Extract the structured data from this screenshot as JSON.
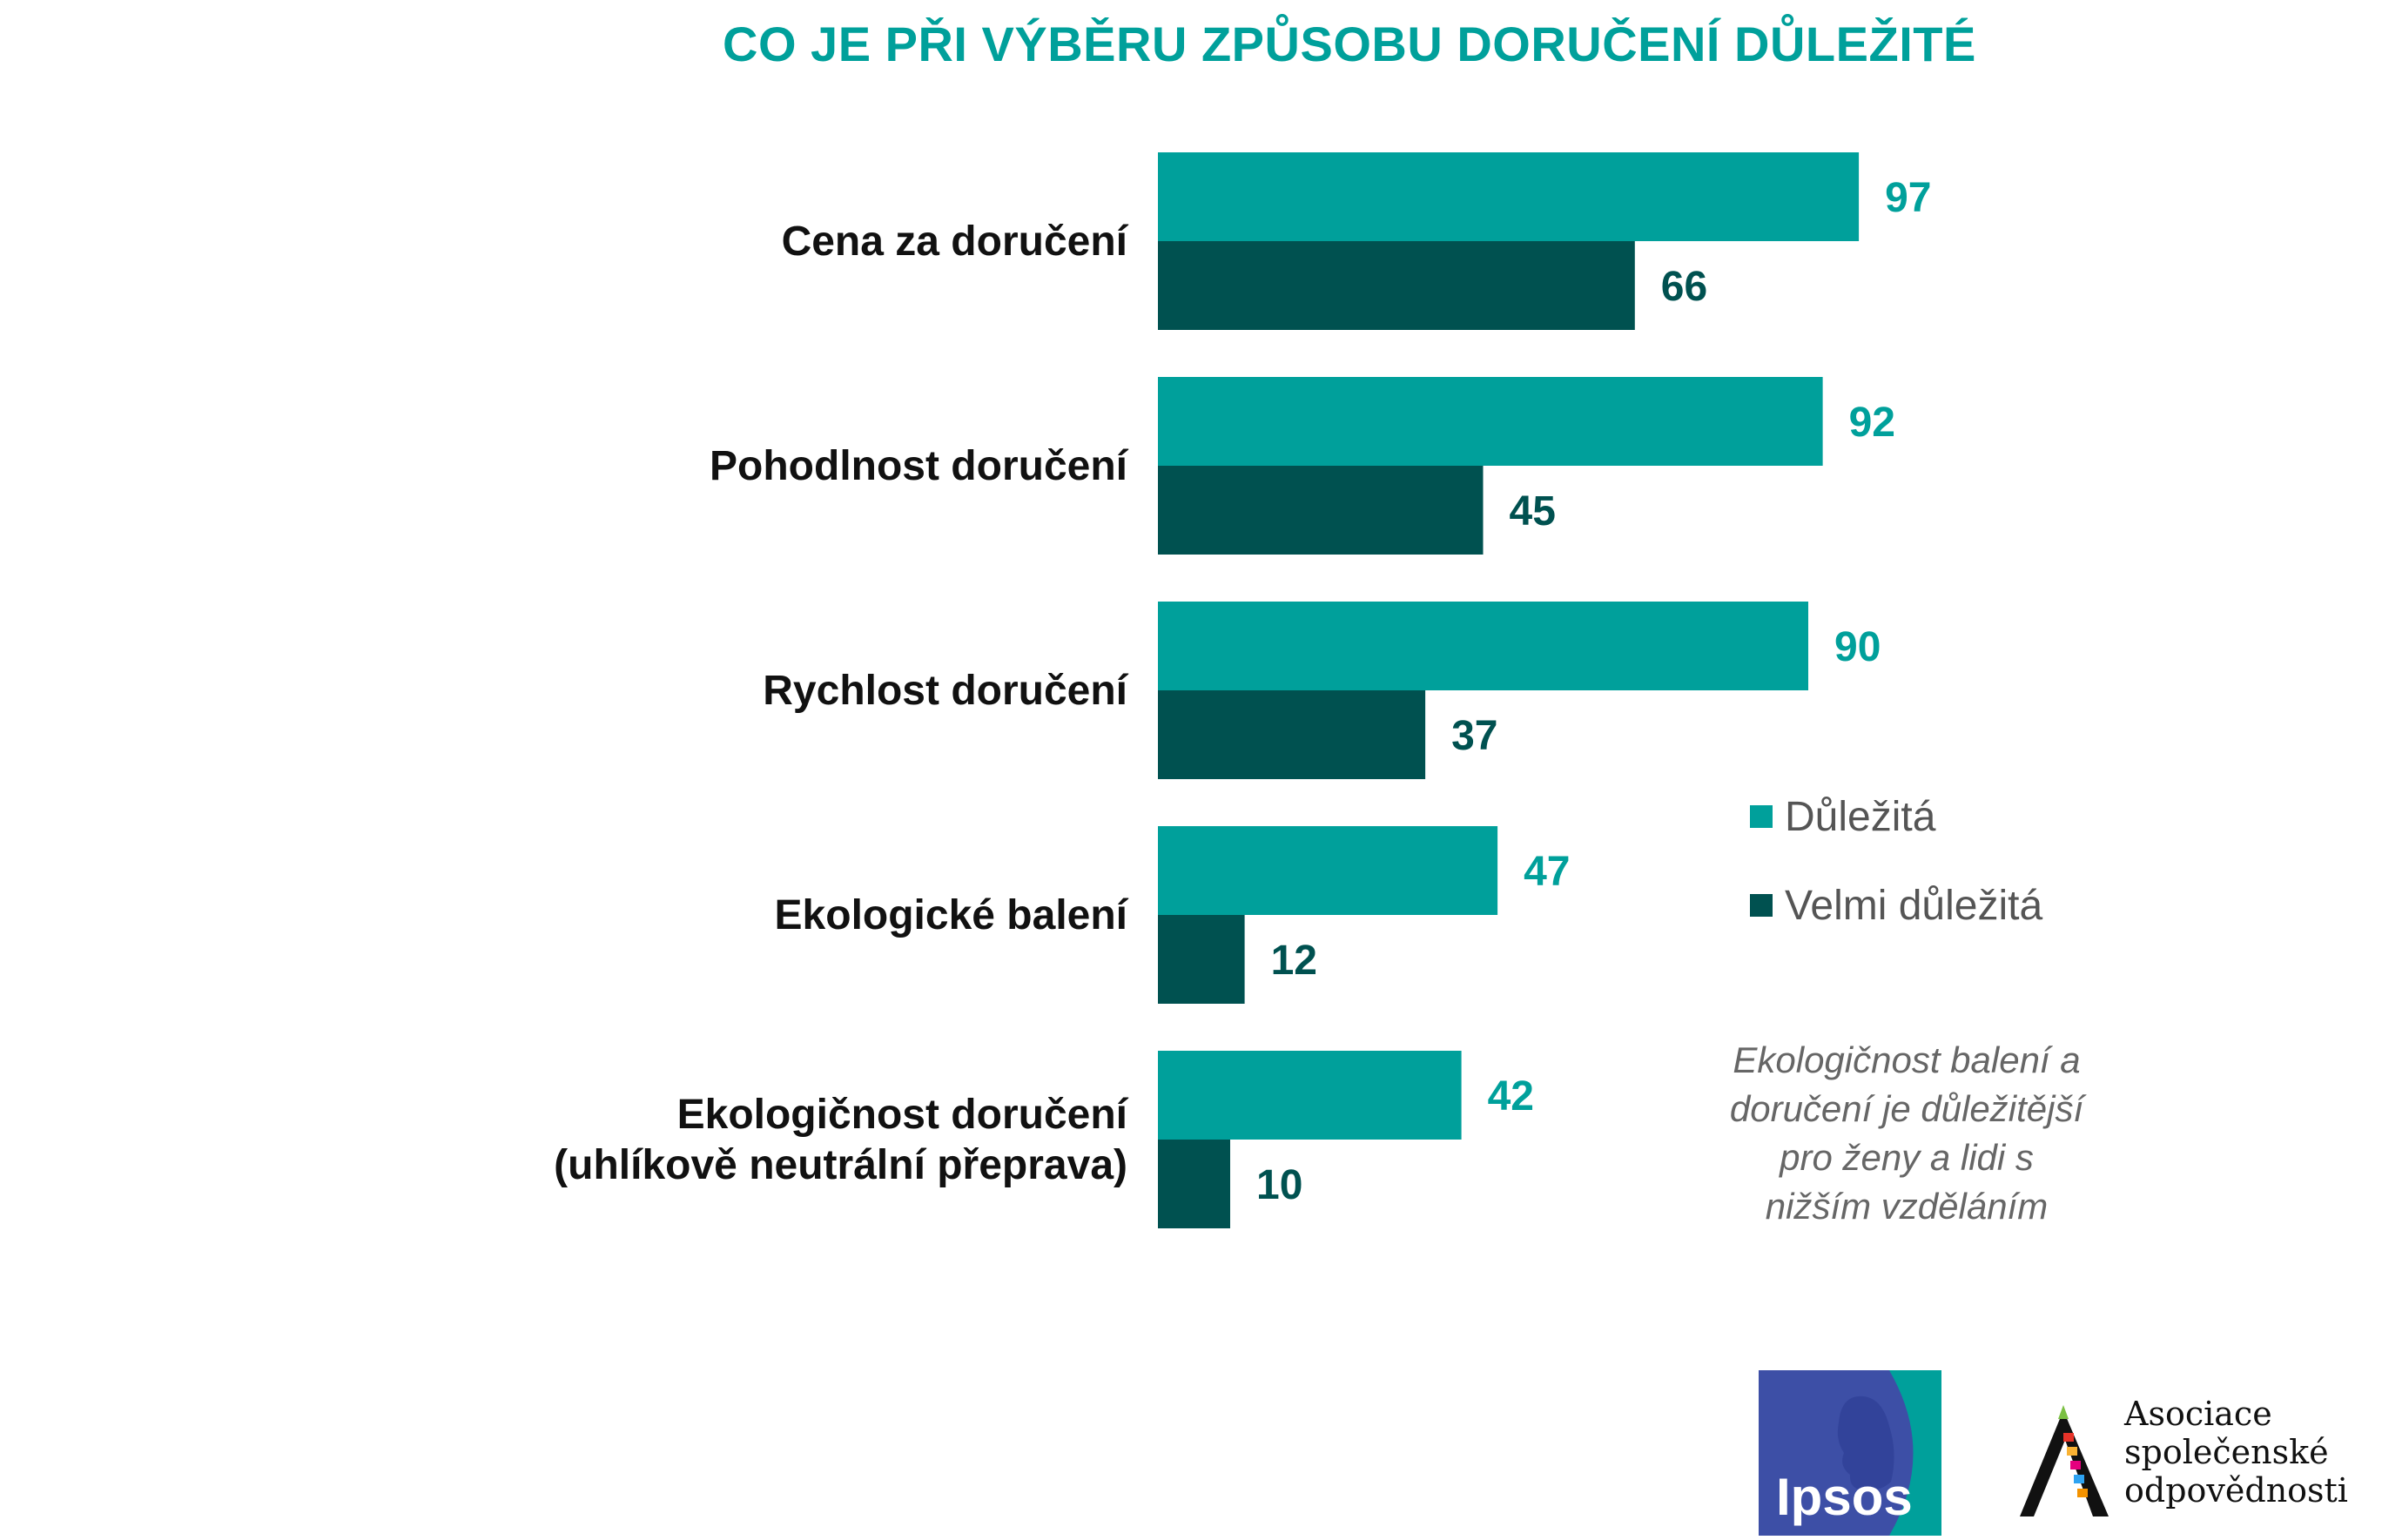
{
  "chart_data": {
    "type": "bar",
    "orientation": "horizontal",
    "title": "CO JE PŘI VÝBĚRU ZPŮSOBU DORUČENÍ DŮLEŽITÉ",
    "categories": [
      [
        "Cena za doručení"
      ],
      [
        "Pohodlnost doručení"
      ],
      [
        "Rychlost doručení"
      ],
      [
        "Ekologické balení"
      ],
      [
        "Ekologičnost doručení",
        "(uhlíkově neutrální přeprava)"
      ]
    ],
    "series": [
      {
        "name": "Důležitá",
        "color": "#00a09b",
        "values": [
          97,
          92,
          90,
          47,
          42
        ]
      },
      {
        "name": "Velmi důležitá",
        "color": "#005150",
        "values": [
          66,
          45,
          37,
          12,
          10
        ]
      }
    ],
    "xlim": [
      0,
      100
    ],
    "grid": false,
    "legend_position": "right"
  },
  "note": [
    "Ekologičnost balení a",
    "doručení je důležitější",
    "pro ženy a lidi s",
    "nižším vzděláním"
  ],
  "logos": {
    "ipsos": "Ipsos",
    "asociace": [
      "Asociace",
      "společenské",
      "odpovědnosti"
    ]
  }
}
